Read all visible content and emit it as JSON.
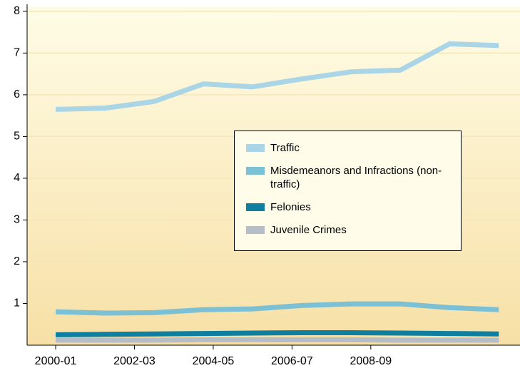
{
  "chart_data": {
    "type": "line",
    "x": [
      0,
      1,
      2,
      3,
      4,
      5,
      6,
      7,
      8,
      9
    ],
    "xlim": [
      -0.58,
      9.3
    ],
    "xticks": [
      {
        "value": 0,
        "label": "2000-01"
      },
      {
        "value": 1.6,
        "label": "2002-03"
      },
      {
        "value": 3.2,
        "label": "2004-05"
      },
      {
        "value": 4.8,
        "label": "2006-07"
      },
      {
        "value": 6.4,
        "label": "2008-09"
      }
    ],
    "ylim": [
      0,
      8.1
    ],
    "yticks": [
      1,
      2,
      3,
      4,
      5,
      6,
      7,
      8
    ],
    "grid": true,
    "series": [
      {
        "name": "Traffic",
        "color": "#a9d5e7",
        "values": [
          5.65,
          5.68,
          5.84,
          6.26,
          6.19,
          6.38,
          6.55,
          6.59,
          7.22,
          7.18
        ]
      },
      {
        "name": "Misdemeanors and Infractions (non-traffic)",
        "color": "#7cc0d5",
        "values": [
          0.8,
          0.77,
          0.78,
          0.85,
          0.87,
          0.95,
          0.99,
          0.99,
          0.9,
          0.85
        ]
      },
      {
        "name": "Felonies",
        "color": "#0f7fa1",
        "values": [
          0.25,
          0.26,
          0.27,
          0.28,
          0.29,
          0.3,
          0.3,
          0.29,
          0.28,
          0.27
        ]
      },
      {
        "name": "Juvenile Crimes",
        "color": "#b5bdc9",
        "values": [
          0.12,
          0.12,
          0.12,
          0.13,
          0.13,
          0.13,
          0.13,
          0.12,
          0.12,
          0.12
        ]
      }
    ]
  }
}
